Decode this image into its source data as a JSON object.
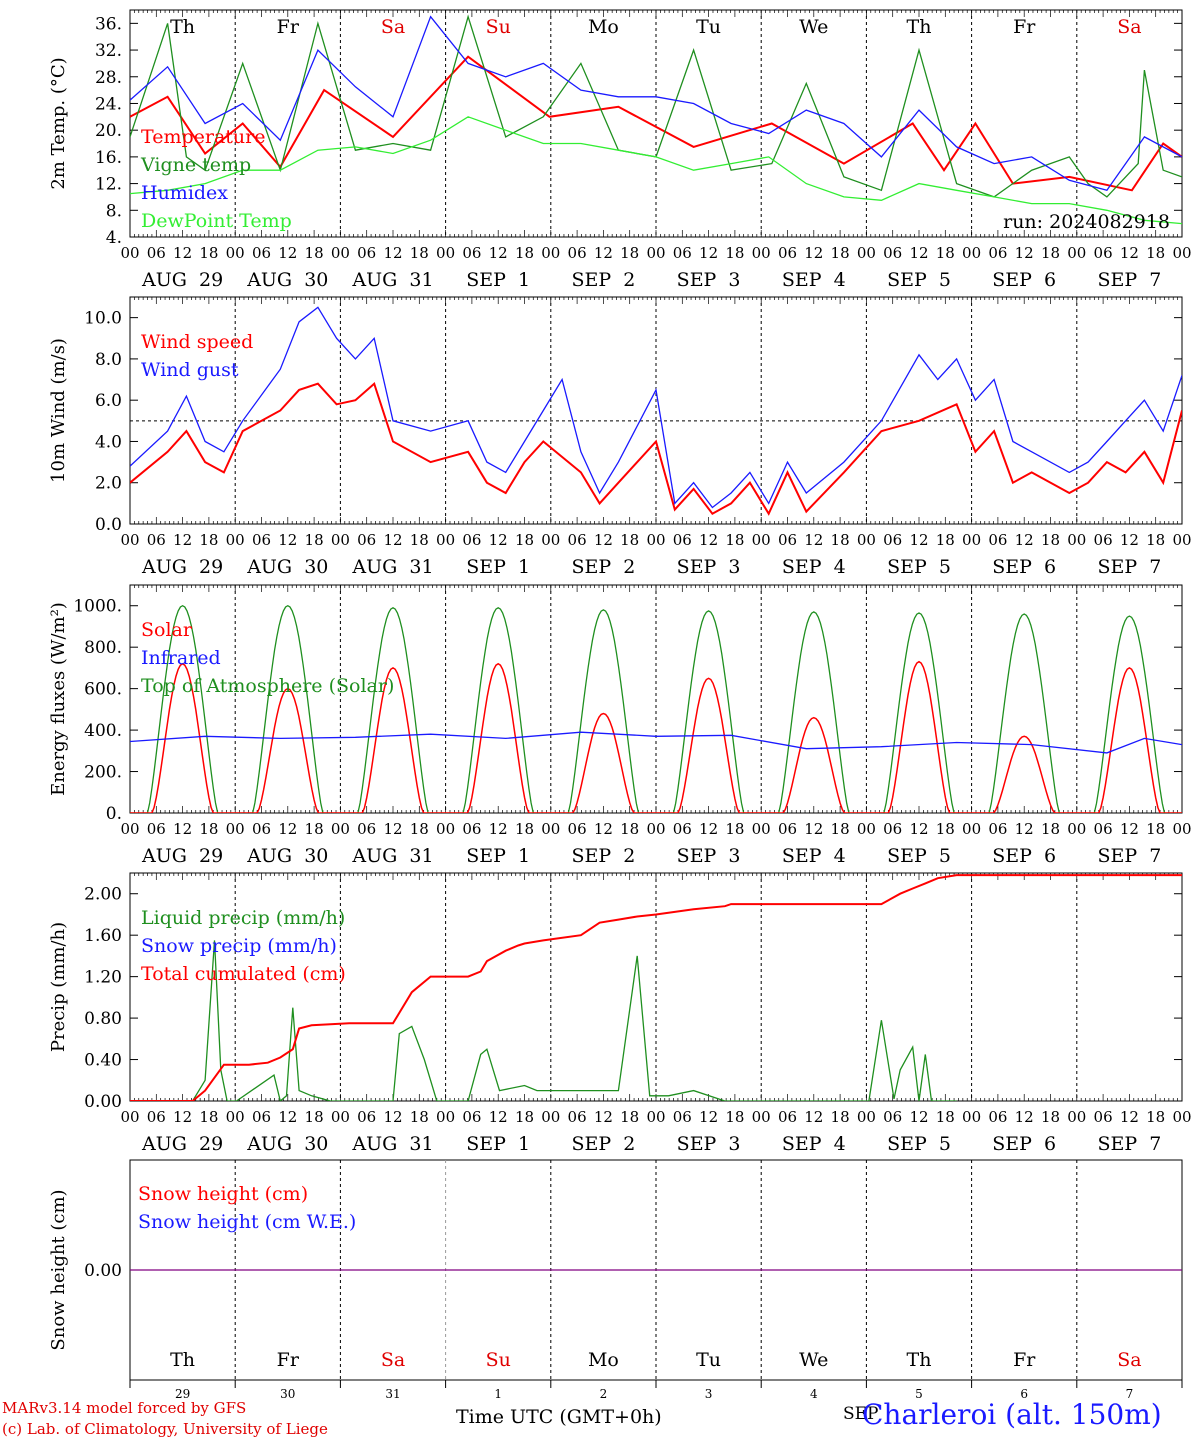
{
  "days": [
    {
      "dow": "Th",
      "dow_color": "#000000",
      "month": "AUG",
      "day": "29",
      "short": "29"
    },
    {
      "dow": "Fr",
      "dow_color": "#000000",
      "month": "AUG",
      "day": "30",
      "short": "30"
    },
    {
      "dow": "Sa",
      "dow_color": "#e00000",
      "month": "AUG",
      "day": "31",
      "short": "31"
    },
    {
      "dow": "Su",
      "dow_color": "#e00000",
      "month": "SEP",
      "day": "1",
      "short": "1"
    },
    {
      "dow": "Mo",
      "dow_color": "#000000",
      "month": "SEP",
      "day": "2",
      "short": "2"
    },
    {
      "dow": "Tu",
      "dow_color": "#000000",
      "month": "SEP",
      "day": "3",
      "short": "3"
    },
    {
      "dow": "We",
      "dow_color": "#000000",
      "month": "SEP",
      "day": "4",
      "short": "4"
    },
    {
      "dow": "Th",
      "dow_color": "#000000",
      "month": "SEP",
      "day": "5",
      "short": "5"
    },
    {
      "dow": "Fr",
      "dow_color": "#000000",
      "month": "SEP",
      "day": "6",
      "short": "6"
    },
    {
      "dow": "Sa",
      "dow_color": "#e00000",
      "month": "SEP",
      "day": "7",
      "short": "7"
    }
  ],
  "hour_ticks": [
    "00",
    "06",
    "12",
    "18"
  ],
  "last_tick": "00",
  "bottom_month": "SEP",
  "xlabel": "Time UTC (GMT+0h)",
  "station": "Charleroi (alt. 150m)",
  "credits": [
    "MARv3.14 model forced by GFS",
    "(c) Lab. of Climatology, University of Liege"
  ],
  "run_label": "run: 2024082918",
  "colors": {
    "red": "#ff0000",
    "blue": "#1a1aff",
    "dgreen": "#1f8f1f",
    "lgreen": "#33ee33",
    "purple": "#800080"
  },
  "chart_data": [
    {
      "type": "line",
      "ylabel": "2m Temp. (°C)",
      "ylim": [
        4,
        38
      ],
      "ticks": [
        "4.",
        "8.",
        "12.",
        "16.",
        "20.",
        "24.",
        "28.",
        "32.",
        "36."
      ],
      "tick_values": [
        4,
        8,
        12,
        16,
        20,
        24,
        28,
        32,
        36
      ],
      "legend": [
        "Temperature",
        "Vigne temp",
        "Humidex",
        "DewPoint Temp"
      ],
      "series": [
        {
          "name": "Temperature",
          "color": "red",
          "hours": [
            0,
            12,
            24,
            36,
            48,
            62,
            84,
            108,
            134,
            156,
            180,
            205,
            228,
            250,
            260,
            270,
            282,
            300,
            320,
            330,
            336
          ],
          "values": [
            22,
            25,
            16.5,
            21,
            14.5,
            26,
            19,
            31,
            22,
            23.5,
            17.5,
            21,
            15,
            21,
            14,
            21,
            12,
            13,
            11,
            18,
            16
          ]
        },
        {
          "name": "Vigne temp",
          "color": "dgreen",
          "hours": [
            0,
            12,
            18,
            24,
            36,
            48,
            60,
            72,
            84,
            96,
            108,
            120,
            132,
            144,
            156,
            168,
            180,
            192,
            205,
            216,
            228,
            240,
            252,
            264,
            276,
            288,
            300,
            306,
            312,
            322,
            324,
            330,
            336
          ],
          "values": [
            19,
            36,
            16,
            14,
            30,
            14,
            36,
            17,
            18,
            17,
            37,
            19,
            22,
            30,
            17,
            16,
            32,
            14,
            15,
            27,
            13,
            11,
            32,
            12,
            10,
            14,
            16,
            12,
            10,
            15,
            29,
            14,
            13
          ]
        },
        {
          "name": "Humidex",
          "color": "blue",
          "hours": [
            0,
            12,
            24,
            36,
            48,
            60,
            72,
            84,
            96,
            108,
            120,
            132,
            144,
            156,
            168,
            180,
            192,
            204,
            216,
            228,
            240,
            252,
            264,
            276,
            288,
            300,
            312,
            324,
            336
          ],
          "values": [
            24.5,
            29.5,
            21,
            24,
            18.5,
            32,
            26.5,
            22,
            37,
            30,
            28,
            30,
            26,
            25,
            25,
            24,
            21,
            19.5,
            23,
            21,
            16,
            23,
            17.5,
            15,
            16,
            12.5,
            11,
            19,
            16
          ]
        },
        {
          "name": "DewPoint Temp",
          "color": "lgreen",
          "hours": [
            0,
            12,
            24,
            36,
            48,
            60,
            72,
            84,
            96,
            108,
            120,
            132,
            144,
            156,
            168,
            180,
            192,
            204,
            216,
            228,
            240,
            252,
            264,
            276,
            288,
            300,
            312,
            324,
            336
          ],
          "values": [
            10.5,
            11,
            12,
            14,
            14,
            17,
            17.5,
            16.5,
            18.5,
            22,
            20,
            18,
            18,
            17,
            16,
            14,
            15,
            16,
            12,
            10,
            9.5,
            12,
            11,
            10,
            9,
            9,
            8,
            6.5,
            6
          ]
        }
      ]
    },
    {
      "type": "line",
      "ylabel": "10m Wind (m/s)",
      "ylim": [
        0,
        11
      ],
      "ticks": [
        "0.0",
        "2.0",
        "4.0",
        "6.0",
        "8.0",
        "10.0"
      ],
      "tick_values": [
        0,
        2,
        4,
        6,
        8,
        10
      ],
      "ref_line": 5,
      "legend": [
        "Wind speed",
        "Wind gust"
      ],
      "series": [
        {
          "name": "Wind speed",
          "color": "red",
          "hours": [
            0,
            12,
            18,
            24,
            30,
            36,
            48,
            54,
            60,
            66,
            72,
            78,
            84,
            96,
            108,
            114,
            120,
            126,
            132,
            144,
            150,
            156,
            168,
            174,
            180,
            186,
            192,
            198,
            204,
            210,
            216,
            228,
            240,
            252,
            264,
            270,
            276,
            282,
            288,
            300,
            306,
            312,
            318,
            324,
            330,
            336
          ],
          "values": [
            2,
            3.5,
            4.5,
            3,
            2.5,
            4.5,
            5.5,
            6.5,
            6.8,
            5.8,
            6,
            6.8,
            4,
            3,
            3.5,
            2,
            1.5,
            3,
            4,
            2.5,
            1,
            2,
            4,
            0.7,
            1.7,
            0.5,
            1,
            2,
            0.5,
            2.5,
            0.6,
            2.5,
            4.5,
            5,
            5.8,
            3.5,
            4.5,
            2,
            2.5,
            1.5,
            2,
            3,
            2.5,
            3.5,
            2,
            5.5
          ]
        },
        {
          "name": "Wind gust",
          "color": "blue",
          "hours": [
            0,
            12,
            18,
            24,
            30,
            36,
            48,
            54,
            60,
            66,
            72,
            78,
            84,
            96,
            108,
            114,
            120,
            126,
            132,
            138,
            144,
            150,
            156,
            168,
            174,
            180,
            186,
            192,
            198,
            204,
            210,
            216,
            228,
            240,
            252,
            258,
            264,
            270,
            276,
            282,
            288,
            300,
            306,
            312,
            318,
            324,
            330,
            336
          ],
          "values": [
            2.8,
            4.5,
            6.2,
            4,
            3.5,
            5,
            7.5,
            9.8,
            10.5,
            9,
            8,
            9,
            5,
            4.5,
            5,
            3,
            2.5,
            4,
            5.5,
            7,
            3.5,
            1.5,
            3,
            6.5,
            1,
            2,
            0.8,
            1.5,
            2.5,
            1,
            3,
            1.5,
            3,
            5,
            8.2,
            7,
            8,
            6,
            7,
            4,
            3.5,
            2.5,
            3,
            4,
            5,
            6,
            4.5,
            7.2
          ]
        }
      ]
    },
    {
      "type": "line",
      "ylabel": "Energy fluxes (W/m²)",
      "ylim": [
        0,
        1100
      ],
      "ticks": [
        "0.",
        "200.",
        "400.",
        "600.",
        "800.",
        "1000."
      ],
      "tick_values": [
        0,
        200,
        400,
        600,
        800,
        1000
      ],
      "legend": [
        "Solar",
        "Infrared",
        "Top of Atmosphere (Solar)"
      ],
      "toa_peaks": [
        1000,
        1000,
        990,
        990,
        980,
        975,
        970,
        965,
        960,
        950
      ],
      "solar_peaks": [
        720,
        600,
        700,
        720,
        480,
        650,
        460,
        730,
        370,
        700
      ],
      "series": [
        {
          "name": "Infrared",
          "color": "blue",
          "hours": [
            0,
            24,
            48,
            72,
            96,
            120,
            144,
            168,
            192,
            216,
            240,
            264,
            288,
            312,
            324,
            336
          ],
          "values": [
            345,
            370,
            360,
            365,
            380,
            360,
            390,
            370,
            375,
            310,
            320,
            340,
            330,
            290,
            360,
            330
          ]
        }
      ]
    },
    {
      "type": "line",
      "ylabel": "Precip (mm/h)",
      "ylim": [
        0,
        2.2
      ],
      "ticks": [
        "0.00",
        "0.40",
        "0.80",
        "1.20",
        "1.60",
        "2.00"
      ],
      "tick_values": [
        0,
        0.4,
        0.8,
        1.2,
        1.6,
        2.0
      ],
      "legend": [
        "Liquid precip (mm/h)",
        "Snow precip (mm/h)",
        "Total cumulated (cm)"
      ],
      "series": [
        {
          "name": "Liquid precip (mm/h)",
          "color": "dgreen",
          "hours": [
            0,
            20,
            24,
            27,
            29,
            31,
            34,
            46,
            48,
            50,
            52,
            54,
            58,
            64,
            72,
            84,
            86,
            90,
            94,
            98,
            100,
            108,
            112,
            114,
            118,
            126,
            130,
            138,
            146,
            156,
            162,
            166,
            168,
            172,
            180,
            190,
            196,
            204,
            236,
            240,
            244,
            246,
            250,
            252,
            254,
            256,
            264
          ],
          "values": [
            0,
            0,
            0.2,
            1.55,
            0.3,
            0,
            0,
            0.25,
            0,
            0.05,
            0.9,
            0.1,
            0.05,
            0,
            0,
            0,
            0.65,
            0.72,
            0.4,
            0,
            0,
            0,
            0.45,
            0.5,
            0.1,
            0.15,
            0.1,
            0.1,
            0.1,
            0.1,
            1.4,
            0.05,
            0.05,
            0.05,
            0.1,
            0,
            0,
            0,
            0,
            0.78,
            0.02,
            0.3,
            0.52,
            0,
            0.45,
            0,
            0
          ]
        },
        {
          "name": "Total cumulated (cm)",
          "color": "red",
          "hours": [
            0,
            20,
            24,
            30,
            38,
            44,
            48,
            52,
            54,
            58,
            70,
            84,
            86,
            90,
            96,
            102,
            108,
            112,
            114,
            120,
            124,
            126,
            132,
            144,
            150,
            156,
            162,
            168,
            180,
            190,
            192,
            204,
            240,
            246,
            250,
            254,
            258,
            264,
            288,
            306,
            336
          ],
          "values": [
            0,
            0,
            0.1,
            0.35,
            0.35,
            0.37,
            0.42,
            0.5,
            0.7,
            0.73,
            0.75,
            0.75,
            0.85,
            1.05,
            1.2,
            1.2,
            1.2,
            1.25,
            1.35,
            1.45,
            1.5,
            1.52,
            1.55,
            1.6,
            1.72,
            1.75,
            1.78,
            1.8,
            1.85,
            1.88,
            1.9,
            1.9,
            1.9,
            2.0,
            2.05,
            2.1,
            2.15,
            2.18,
            2.18,
            2.18,
            2.18
          ]
        }
      ]
    },
    {
      "type": "line",
      "ylabel": "Snow height (cm)",
      "ylim": [
        -1,
        1
      ],
      "ticks": [
        "0.00"
      ],
      "tick_values": [
        0
      ],
      "legend": [
        "Snow height (cm)",
        "Snow height (cm W.E.)"
      ],
      "series": [
        {
          "name": "Snow height (cm)",
          "color": "purple",
          "hours": [
            0,
            336
          ],
          "values": [
            0,
            0
          ]
        }
      ]
    }
  ]
}
